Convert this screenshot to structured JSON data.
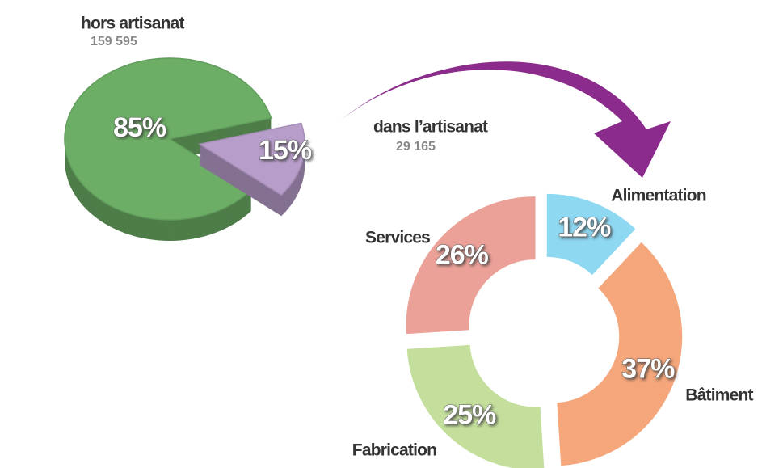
{
  "chart_data": [
    {
      "type": "pie3d",
      "categories": [
        "hors artisanat",
        "dans l’artisanat"
      ],
      "values": [
        85,
        15
      ],
      "value_labels": [
        "85%",
        "15%"
      ],
      "counts": [
        159595,
        29165
      ],
      "count_labels": [
        "159 595",
        "29 165"
      ],
      "colors": [
        "#6cae66",
        "#b79dca"
      ]
    },
    {
      "type": "donut",
      "categories": [
        "Alimentation",
        "Bâtiment",
        "Fabrication",
        "Services"
      ],
      "values": [
        12,
        37,
        25,
        26
      ],
      "value_labels": [
        "12%",
        "37%",
        "25%",
        "26%"
      ],
      "colors": [
        "#8fd8f2",
        "#f5a67b",
        "#c4df9c",
        "#eba198"
      ]
    }
  ]
}
